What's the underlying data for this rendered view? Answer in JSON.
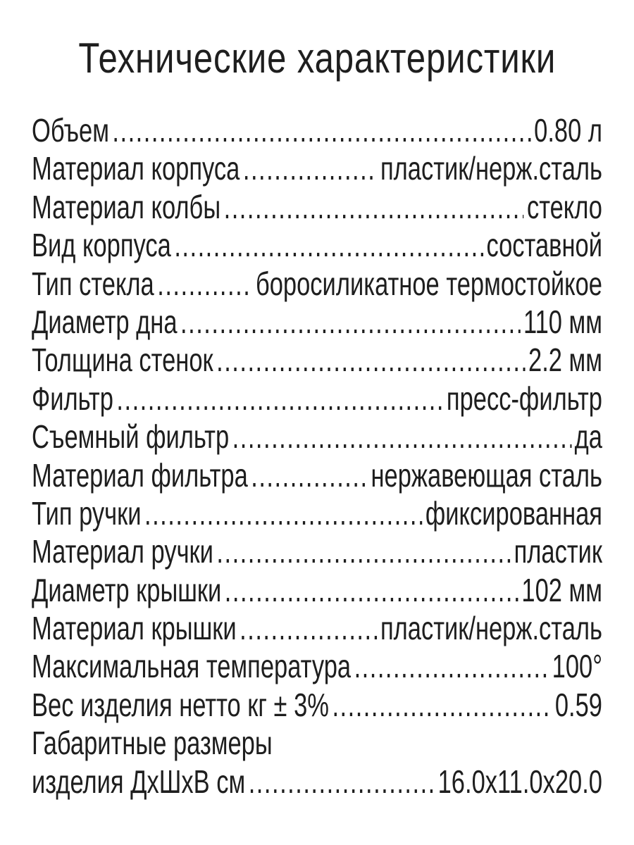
{
  "title": "Технические характеристики",
  "specs": [
    {
      "label": "Объем",
      "value": "0.80 л"
    },
    {
      "label": "Материал корпуса",
      "value": "пластик/нерж.сталь"
    },
    {
      "label": "Материал колбы",
      "value": "стекло"
    },
    {
      "label": "Вид корпуса",
      "value": "составной"
    },
    {
      "label": "Тип стекла",
      "value": "боросиликатное термостойкое"
    },
    {
      "label": "Диаметр дна",
      "value": "110 мм"
    },
    {
      "label": "Толщина стенок",
      "value": "2.2 мм"
    },
    {
      "label": "Фильтр",
      "value": "пресс-фильтр"
    },
    {
      "label": "Съемный фильтр",
      "value": "да"
    },
    {
      "label": "Материал фильтра",
      "value": "нержавеющая сталь"
    },
    {
      "label": "Тип ручки",
      "value": "фиксированная"
    },
    {
      "label": "Материал ручки",
      "value": "пластик"
    },
    {
      "label": "Диаметр крышки",
      "value": "102 мм"
    },
    {
      "label": "Материал крышки",
      "value": "пластик/нерж.сталь"
    },
    {
      "label": "Максимальная температура",
      "value": "100°"
    },
    {
      "label": "Вес изделия нетто кг ± 3%",
      "value": "0.59"
    }
  ],
  "dimensions": {
    "label_line1": "Габаритные размеры",
    "label_line2": "изделия ДхШхВ см",
    "value": "16.0x11.0x20.0"
  }
}
